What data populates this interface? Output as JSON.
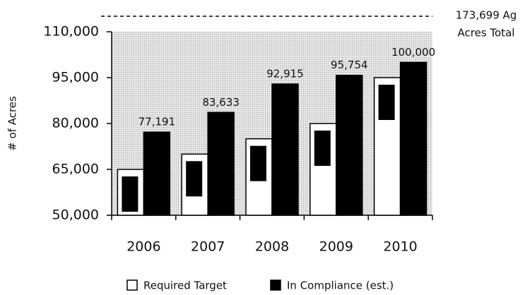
{
  "chart_data": {
    "type": "bar",
    "y_axis_label": "# of Acres",
    "annotation": [
      "173,699 Ag",
      "Acres Total"
    ],
    "categories": [
      "2006",
      "2007",
      "2008",
      "2009",
      "2010"
    ],
    "series": [
      {
        "name": "Required Target",
        "color": "#ffffff",
        "values": [
          65000,
          70000,
          75000,
          80000,
          95000
        ]
      },
      {
        "name": "In Compliance (est.)",
        "color": "#000000",
        "values": [
          77191,
          83633,
          92915,
          95754,
          100000
        ],
        "value_labels": [
          "77,191",
          "83,633",
          "92,915",
          "95,754",
          "100,000"
        ]
      }
    ],
    "ylim": [
      50000,
      110000
    ],
    "yticks": [
      {
        "value": 50000,
        "label": "50,000"
      },
      {
        "value": 65000,
        "label": "65,000"
      },
      {
        "value": 80000,
        "label": "80,000"
      },
      {
        "value": 95000,
        "label": "95,000"
      },
      {
        "value": 110000,
        "label": "110,000"
      }
    ]
  }
}
